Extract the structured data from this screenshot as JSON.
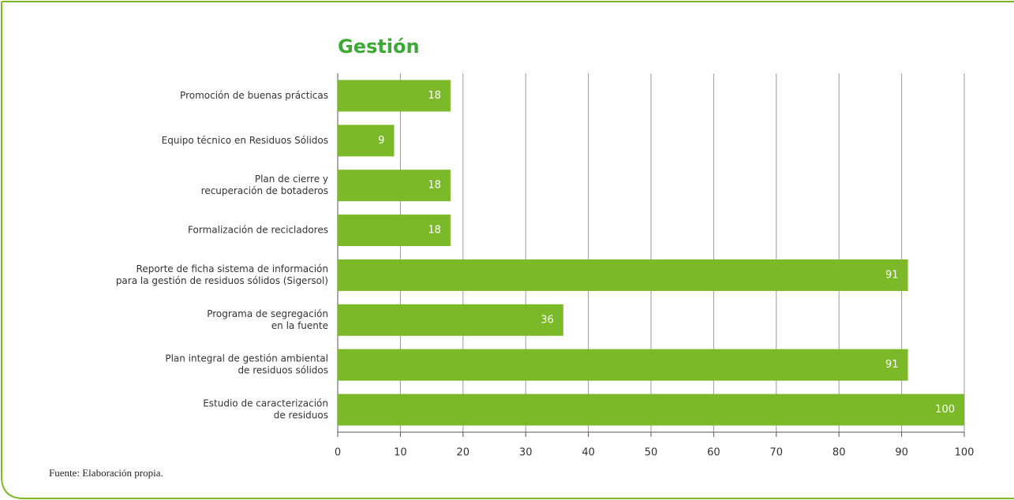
{
  "chart_data": {
    "type": "bar",
    "orientation": "horizontal",
    "title": "Gestión",
    "categories": [
      [
        "Promoción de buenas prácticas"
      ],
      [
        "Equipo técnico en Residuos Sólidos"
      ],
      [
        "Plan de cierre y",
        "recuperación de botaderos"
      ],
      [
        "Formalización de recicladores"
      ],
      [
        "Reporte de ficha sistema de información",
        "para la gestión de residuos sólidos (Sigersol)"
      ],
      [
        "Programa de segregación",
        "en la fuente"
      ],
      [
        "Plan integral de gestión ambiental",
        "de residuos sólidos"
      ],
      [
        "Estudio de caracterización",
        "de residuos"
      ]
    ],
    "values": [
      18,
      9,
      18,
      18,
      91,
      36,
      91,
      100
    ],
    "color": "#7cb928",
    "xlim": [
      0,
      100
    ],
    "xticks": [
      0,
      10,
      20,
      30,
      40,
      50,
      60,
      70,
      80,
      90,
      100
    ],
    "grid": true,
    "source": "Fuente: Elaboración propia."
  }
}
